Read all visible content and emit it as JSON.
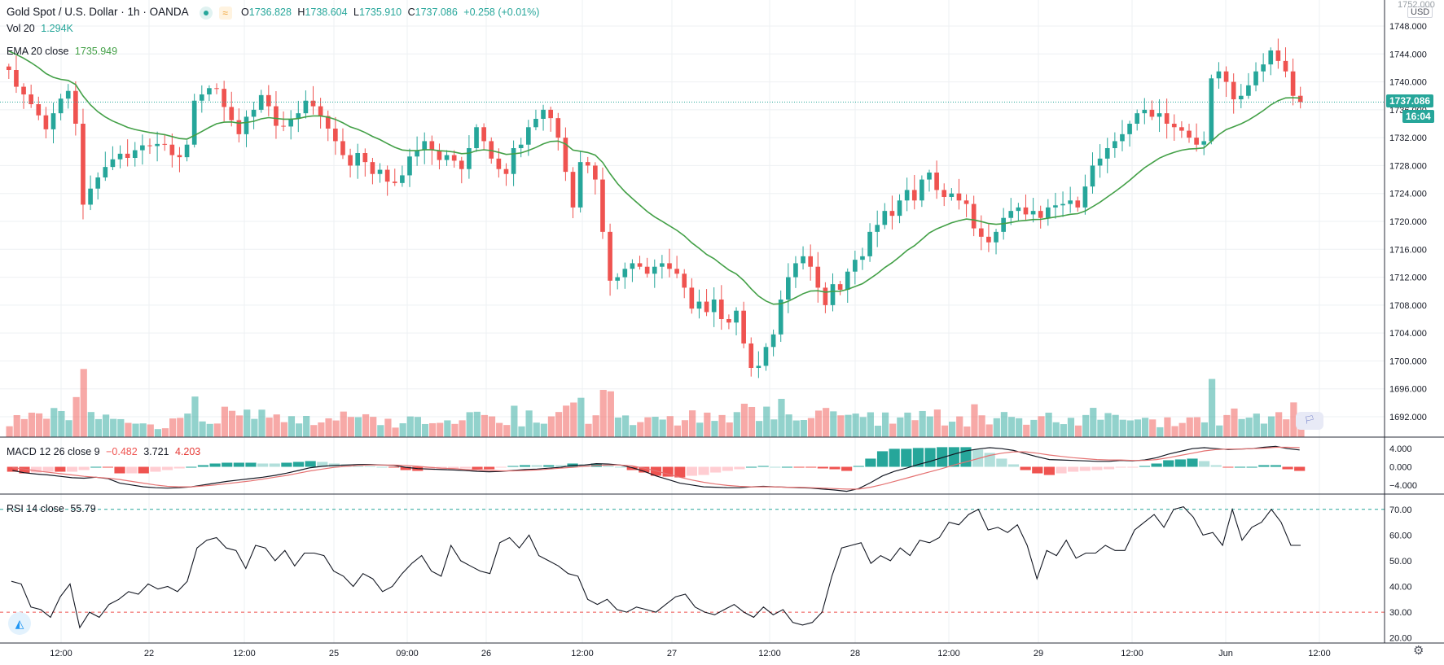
{
  "header": {
    "title": "Gold Spot / U.S. Dollar · 1h · OANDA",
    "o_label": "O",
    "o_value": "1736.828",
    "h_label": "H",
    "h_value": "1738.604",
    "l_label": "L",
    "l_value": "1735.910",
    "c_label": "C",
    "c_value": "1737.086",
    "change": "+0.258 (+0.01%)",
    "live_icon": "green-dot-icon",
    "compare_icon": "wave-icon"
  },
  "vol_legend": {
    "label": "Vol 20",
    "value": "1.294K"
  },
  "ema_legend": {
    "label": "EMA 20 close",
    "value": "1735.949"
  },
  "macd_legend": {
    "label": "MACD 12 26 close 9",
    "hist": "−0.482",
    "macd": "3.721",
    "signal": "4.203"
  },
  "rsi_legend": {
    "label": "RSI 14 close",
    "value": "55.79"
  },
  "price_axis": {
    "currency": "USD",
    "last_price": "1737.086",
    "countdown": "16:04",
    "top_clip": "1752.000"
  },
  "colors": {
    "up": "#26a69a",
    "down": "#ef5350",
    "ema": "#43a047",
    "macd": "#131722",
    "signal": "#e57373",
    "rsi": "#131722",
    "grid": "#eef0f3"
  },
  "chart_data": [
    {
      "type": "candlestick",
      "title": "Gold Spot / U.S. Dollar · 1h · OANDA",
      "ylim": [
        1688,
        1752
      ],
      "y_ticks": [
        "1748.000",
        "1744.000",
        "1740.000",
        "1736.000",
        "1732.000",
        "1728.000",
        "1724.000",
        "1720.000",
        "1716.000",
        "1712.000",
        "1708.000",
        "1704.000",
        "1700.000",
        "1696.000",
        "1692.000"
      ],
      "x_ticks": [
        "12:00",
        "22",
        "12:00",
        "25",
        "09:00",
        "26",
        "12:00",
        "27",
        "12:00",
        "28",
        "12:00",
        "29",
        "12:00",
        "Jun",
        "12:00"
      ],
      "close": [
        1741.7,
        1739.3,
        1738.2,
        1736.8,
        1735.2,
        1733.2,
        1735.5,
        1737.6,
        1738.7,
        1734.0,
        1722.4,
        1724.7,
        1726.3,
        1727.8,
        1728.9,
        1729.7,
        1729.1,
        1730.2,
        1730.9,
        1730.8,
        1731.1,
        1731.0,
        1729.5,
        1729.2,
        1731.0,
        1737.3,
        1738.2,
        1739.1,
        1739.0,
        1736.4,
        1734.5,
        1732.5,
        1735.0,
        1736.0,
        1738.1,
        1736.5,
        1733.7,
        1733.6,
        1734.7,
        1735.5,
        1737.3,
        1736.5,
        1735.1,
        1733.3,
        1731.5,
        1729.5,
        1728.0,
        1729.8,
        1728.5,
        1726.8,
        1727.4,
        1725.7,
        1725.5,
        1726.6,
        1729.3,
        1730.2,
        1731.5,
        1730.2,
        1728.8,
        1729.5,
        1728.7,
        1727.5,
        1730.5,
        1733.5,
        1731.5,
        1729.0,
        1727.5,
        1726.8,
        1730.5,
        1731.0,
        1733.5,
        1734.7,
        1736.0,
        1734.8,
        1732.0,
        1727.1,
        1722.0,
        1728.5,
        1728.0,
        1726.0,
        1718.5,
        1711.5,
        1712.0,
        1713.2,
        1714.0,
        1713.5,
        1712.5,
        1713.5,
        1714.0,
        1713.2,
        1712.5,
        1710.5,
        1707.5,
        1708.5,
        1707.0,
        1708.8,
        1706.0,
        1705.5,
        1707.2,
        1702.5,
        1699.0,
        1699.3,
        1702.0,
        1703.8,
        1708.8,
        1712.0,
        1714.0,
        1715.0,
        1713.5,
        1710.5,
        1708.0,
        1711.0,
        1710.2,
        1712.8,
        1714.5,
        1715.0,
        1718.5,
        1719.5,
        1721.5,
        1720.8,
        1723.0,
        1724.5,
        1723.0,
        1726.0,
        1727.0,
        1724.5,
        1723.5,
        1724.0,
        1723.0,
        1722.5,
        1719.0,
        1717.8,
        1717.0,
        1718.5,
        1720.5,
        1721.5,
        1722.0,
        1721.0,
        1721.5,
        1720.5,
        1722.0,
        1722.3,
        1722.5,
        1723.0,
        1722.0,
        1725.0,
        1728.0,
        1729.0,
        1730.5,
        1731.5,
        1732.5,
        1734.0,
        1735.5,
        1736.0,
        1735.0,
        1735.5,
        1734.0,
        1733.5,
        1733.0,
        1732.0,
        1731.0,
        1731.5,
        1740.5,
        1741.5,
        1740.0,
        1737.5,
        1738.0,
        1739.5,
        1741.5,
        1742.5,
        1744.5,
        1743.0,
        1741.5,
        1738.0,
        1737.1
      ],
      "volume_note": "volume bars share the price pane bottom",
      "ema_label": "EMA 20 close"
    },
    {
      "type": "line",
      "title": "MACD 12 26 close 9",
      "ylim": [
        -6,
        6
      ],
      "y_ticks": [
        "4.000",
        "0.000",
        "−4.000"
      ],
      "series": [
        {
          "name": "MACD",
          "values": [
            -0.8,
            -1.3,
            -1.6,
            -1.8,
            -2.1,
            -2.4,
            -2.5,
            -2.3,
            -2.6,
            -3.6,
            -4.0,
            -4.4,
            -4.6,
            -4.7,
            -4.6,
            -4.4,
            -4.0,
            -3.6,
            -3.2,
            -2.9,
            -2.6,
            -2.3,
            -1.9,
            -1.4,
            -0.8,
            -0.2,
            0.1,
            0.3,
            0.4,
            0.5,
            0.5,
            0.4,
            0.3,
            -0.1,
            -0.4,
            -0.5,
            -0.6,
            -0.7,
            -0.8,
            -1.0,
            -1.1,
            -1.0,
            -0.8,
            -0.6,
            -0.5,
            -0.3,
            -0.1,
            0.3,
            0.4,
            0.7,
            0.6,
            0.4,
            -0.2,
            -1.0,
            -2.0,
            -2.8,
            -3.6,
            -4.0,
            -4.4,
            -4.5,
            -4.6,
            -4.6,
            -4.4,
            -4.3,
            -4.4,
            -4.5,
            -4.6,
            -4.7,
            -4.9,
            -5.1,
            -5.4,
            -4.8,
            -3.5,
            -2.0,
            -1.0,
            -0.3,
            0.5,
            1.2,
            2.0,
            2.8,
            3.5,
            3.9,
            4.2,
            4.0,
            3.6,
            2.9,
            2.2,
            1.6,
            1.5,
            1.4,
            1.3,
            1.2,
            1.2,
            1.4,
            1.3,
            1.5,
            2.0,
            2.8,
            3.4,
            4.0,
            4.2,
            4.0,
            3.8,
            3.9,
            4.0,
            4.3,
            4.5,
            4.0,
            3.7
          ]
        },
        {
          "name": "Signal",
          "values": [
            -0.2,
            -0.5,
            -0.9,
            -1.2,
            -1.5,
            -1.8,
            -2.1,
            -2.3,
            -2.5,
            -2.8,
            -3.2,
            -3.6,
            -4.0,
            -4.3,
            -4.4,
            -4.4,
            -4.2,
            -4.0,
            -3.7,
            -3.4,
            -3.1,
            -2.7,
            -2.3,
            -1.9,
            -1.4,
            -0.9,
            -0.5,
            -0.1,
            0.1,
            0.3,
            0.4,
            0.4,
            0.4,
            0.3,
            0.1,
            -0.1,
            -0.3,
            -0.4,
            -0.6,
            -0.7,
            -0.8,
            -0.9,
            -0.9,
            -0.8,
            -0.7,
            -0.5,
            -0.3,
            -0.1,
            0.1,
            0.3,
            0.4,
            0.4,
            0.2,
            -0.3,
            -0.9,
            -1.6,
            -2.3,
            -2.9,
            -3.4,
            -3.8,
            -4.1,
            -4.3,
            -4.4,
            -4.4,
            -4.4,
            -4.5,
            -4.5,
            -4.6,
            -4.7,
            -4.8,
            -4.9,
            -4.9,
            -4.5,
            -3.9,
            -3.2,
            -2.5,
            -1.8,
            -1.1,
            -0.4,
            0.4,
            1.1,
            1.8,
            2.5,
            3.0,
            3.3,
            3.3,
            3.0,
            2.6,
            2.3,
            2.0,
            1.8,
            1.6,
            1.5,
            1.5,
            1.4,
            1.4,
            1.6,
            2.0,
            2.5,
            3.0,
            3.5,
            3.8,
            3.9,
            3.9,
            4.0,
            4.1,
            4.3,
            4.3,
            4.2
          ]
        }
      ]
    },
    {
      "type": "line",
      "title": "RSI 14 close",
      "ylim": [
        18,
        75
      ],
      "y_ticks": [
        "70.00",
        "60.00",
        "50.00",
        "40.00",
        "30.00",
        "20.00"
      ],
      "bands": [
        70,
        30
      ],
      "series": [
        {
          "name": "RSI",
          "values": [
            42,
            41,
            32,
            31,
            28,
            36,
            41,
            24,
            30,
            28,
            33,
            35,
            38,
            37,
            41,
            39,
            40,
            38,
            42,
            55,
            58,
            59,
            55,
            54,
            47,
            56,
            55,
            50,
            54,
            48,
            53,
            53,
            52,
            46,
            44,
            40,
            45,
            43,
            38,
            40,
            45,
            49,
            52,
            46,
            44,
            56,
            50,
            48,
            46,
            45,
            57,
            59,
            55,
            60,
            52,
            50,
            48,
            45,
            44,
            35,
            33,
            35,
            31,
            30,
            32,
            31,
            30,
            33,
            36,
            37,
            32,
            30,
            29,
            31,
            33,
            30,
            28,
            32,
            29,
            31,
            26,
            25,
            26,
            30,
            44,
            55,
            56,
            57,
            49,
            52,
            50,
            55,
            52,
            58,
            57,
            59,
            65,
            64,
            68,
            70,
            62,
            63,
            61,
            64,
            56,
            43,
            54,
            52,
            58,
            51,
            53,
            53,
            56,
            54,
            54,
            62,
            65,
            68,
            63,
            70,
            71,
            67,
            60,
            61,
            56,
            70,
            58,
            63,
            65,
            70,
            65,
            56,
            56
          ]
        }
      ]
    }
  ]
}
